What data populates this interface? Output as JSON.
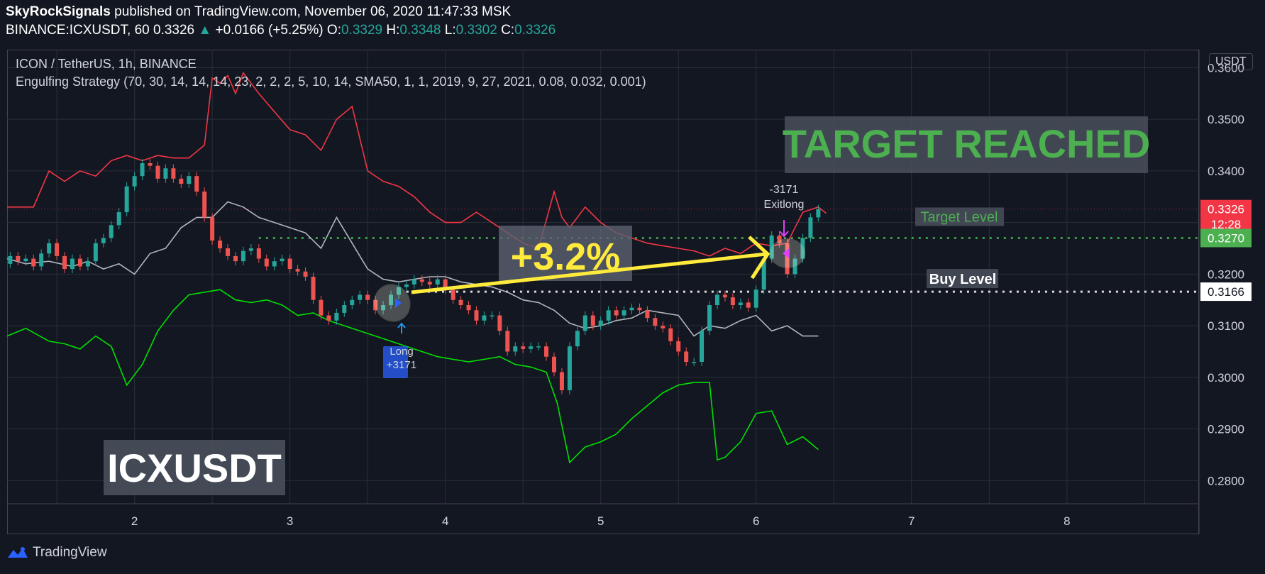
{
  "header": {
    "author": "SkyRockSignals",
    "published_text": "published on TradingView.com, November 06, 2020 11:47:33 MSK",
    "symbol": "BINANCE:ICXUSDT, 60",
    "last_price": "0.3326",
    "change": "+0.0166 (+5.25%)",
    "o_label": "O:",
    "o_value": "0.3329",
    "h_label": "H:",
    "h_value": "0.3348",
    "l_label": "L:",
    "l_value": "0.3302",
    "c_label": "C:",
    "c_value": "0.3326"
  },
  "legend": {
    "title": "ICON / TetherUS, 1h, BINANCE",
    "strategy": "Engulfing Strategy (70, 30, 14, 14, 14, 23, 2, 2, 2, 5, 10, 14, SMA50, 1, 1, 2019, 9, 27, 2021, 0.08, 0.032, 0.001)"
  },
  "currency_badge": "USDT",
  "brand": "TradingView",
  "chart_data": {
    "type": "line",
    "title": "",
    "x_ticks": [
      "2",
      "3",
      "4",
      "5",
      "6",
      "7",
      "8"
    ],
    "y_ticks": [
      "0.3600",
      "0.3500",
      "0.3400",
      "0.3300",
      "0.3200",
      "0.3100",
      "0.3000",
      "0.2900",
      "0.2800"
    ],
    "ylim": [
      0.2755,
      0.3635
    ],
    "xlim": [
      1.18,
      8.85
    ],
    "grid": true,
    "price_labels": [
      {
        "text": "0.3326",
        "value": 0.3326,
        "color": "#f23645"
      },
      {
        "text": "12:28",
        "value": 0.3297,
        "color": "#f23645"
      },
      {
        "text": "0.3270",
        "value": 0.327,
        "color": "#4caf50"
      },
      {
        "text": "0.3166",
        "value": 0.3166,
        "color": "#ffffff"
      }
    ],
    "levels": [
      {
        "name": "Target Level",
        "value": 0.327,
        "color": "#4caf50"
      },
      {
        "name": "Buy Level",
        "value": 0.3166,
        "color": "#ffffff"
      },
      {
        "name": "",
        "value": 0.3326,
        "color": "#f23645"
      }
    ],
    "annotations": {
      "target_reached": "TARGET REACHED",
      "gain": "+3.2%",
      "symbol_label": "ICXUSDT",
      "entry_label": "Long",
      "entry_qty": "+3171",
      "exit_qty": "-3171",
      "exit_label": "Exitlong",
      "target_level_label": "Target Level",
      "buy_level_label": "Buy Level"
    },
    "series": [
      {
        "color": "#f23645",
        "x": [
          1.18,
          1.25,
          1.35,
          1.45,
          1.55,
          1.65,
          1.75,
          1.85,
          1.95,
          2.05,
          2.15,
          2.25,
          2.35,
          2.45,
          2.5,
          2.55,
          2.6,
          2.65,
          2.7,
          2.8,
          2.9,
          3.0,
          3.1,
          3.2,
          3.3,
          3.4,
          3.5,
          3.6,
          3.7,
          3.8,
          3.9,
          4.0,
          4.1,
          4.2,
          4.3,
          4.4,
          4.5,
          4.6,
          4.7,
          4.75,
          4.8,
          4.9,
          5.0,
          5.1,
          5.2,
          5.3,
          5.4,
          5.5,
          5.6,
          5.7,
          5.8,
          5.9,
          6.0,
          6.1,
          6.2,
          6.3,
          6.4,
          6.45
        ],
        "y": [
          0.333,
          0.333,
          0.333,
          0.34,
          0.338,
          0.34,
          0.339,
          0.342,
          0.343,
          0.342,
          0.343,
          0.3425,
          0.3425,
          0.345,
          0.358,
          0.357,
          0.3585,
          0.355,
          0.359,
          0.355,
          0.3515,
          0.348,
          0.347,
          0.344,
          0.35,
          0.3525,
          0.34,
          0.338,
          0.337,
          0.335,
          0.332,
          0.33,
          0.33,
          0.332,
          0.33,
          0.328,
          0.326,
          0.325,
          0.336,
          0.331,
          0.329,
          0.333,
          0.33,
          0.328,
          0.327,
          0.326,
          0.3255,
          0.325,
          0.3245,
          0.3235,
          0.325,
          0.324,
          0.326,
          0.3255,
          0.326,
          0.332,
          0.333,
          0.3318
        ]
      },
      {
        "color": "#b2b5be",
        "x": [
          1.18,
          1.3,
          1.45,
          1.6,
          1.7,
          1.8,
          1.9,
          2.0,
          2.1,
          2.2,
          2.3,
          2.4,
          2.5,
          2.6,
          2.7,
          2.8,
          2.9,
          3.0,
          3.1,
          3.2,
          3.3,
          3.4,
          3.5,
          3.6,
          3.7,
          3.8,
          3.9,
          4.0,
          4.1,
          4.2,
          4.3,
          4.4,
          4.5,
          4.6,
          4.7,
          4.8,
          4.9,
          5.0,
          5.1,
          5.2,
          5.3,
          5.4,
          5.5,
          5.6,
          5.7,
          5.8,
          5.9,
          6.0,
          6.1,
          6.2,
          6.3,
          6.4
        ],
        "y": [
          0.323,
          0.322,
          0.3225,
          0.3215,
          0.3225,
          0.321,
          0.322,
          0.32,
          0.324,
          0.325,
          0.329,
          0.331,
          0.331,
          0.334,
          0.333,
          0.331,
          0.33,
          0.329,
          0.328,
          0.325,
          0.331,
          0.326,
          0.321,
          0.319,
          0.3185,
          0.319,
          0.3195,
          0.3195,
          0.3185,
          0.318,
          0.3175,
          0.3165,
          0.315,
          0.3145,
          0.313,
          0.3105,
          0.3095,
          0.31,
          0.311,
          0.3115,
          0.313,
          0.3125,
          0.312,
          0.308,
          0.31,
          0.3095,
          0.311,
          0.312,
          0.309,
          0.31,
          0.308,
          0.308
        ]
      },
      {
        "color": "#00e000",
        "x": [
          1.18,
          1.3,
          1.45,
          1.55,
          1.65,
          1.75,
          1.85,
          1.95,
          2.05,
          2.15,
          2.25,
          2.35,
          2.45,
          2.55,
          2.65,
          2.75,
          2.85,
          2.95,
          3.05,
          3.15,
          3.25,
          3.35,
          3.45,
          3.55,
          3.65,
          3.75,
          3.85,
          3.95,
          4.05,
          4.15,
          4.25,
          4.35,
          4.45,
          4.55,
          4.65,
          4.72,
          4.8,
          4.9,
          5.0,
          5.1,
          5.2,
          5.3,
          5.4,
          5.5,
          5.6,
          5.7,
          5.75,
          5.8,
          5.9,
          6.0,
          6.1,
          6.2,
          6.3,
          6.4
        ],
        "y": [
          0.308,
          0.3095,
          0.307,
          0.3065,
          0.3055,
          0.308,
          0.306,
          0.2985,
          0.3025,
          0.309,
          0.313,
          0.316,
          0.3165,
          0.317,
          0.315,
          0.3145,
          0.315,
          0.314,
          0.312,
          0.3125,
          0.311,
          0.31,
          0.309,
          0.308,
          0.307,
          0.306,
          0.305,
          0.304,
          0.3035,
          0.303,
          0.3035,
          0.304,
          0.3025,
          0.302,
          0.301,
          0.295,
          0.2835,
          0.2865,
          0.2875,
          0.289,
          0.292,
          0.2945,
          0.297,
          0.2985,
          0.299,
          0.299,
          0.284,
          0.2845,
          0.2875,
          0.293,
          0.2935,
          0.287,
          0.2885,
          0.286
        ]
      }
    ],
    "candles": {
      "x": [
        1.2,
        1.25,
        1.3,
        1.35,
        1.4,
        1.45,
        1.5,
        1.55,
        1.6,
        1.65,
        1.7,
        1.75,
        1.8,
        1.85,
        1.9,
        1.95,
        2.0,
        2.05,
        2.1,
        2.15,
        2.2,
        2.25,
        2.3,
        2.35,
        2.4,
        2.45,
        2.5,
        2.55,
        2.6,
        2.65,
        2.7,
        2.75,
        2.8,
        2.85,
        2.9,
        2.95,
        3.0,
        3.05,
        3.1,
        3.15,
        3.2,
        3.25,
        3.3,
        3.35,
        3.4,
        3.45,
        3.5,
        3.55,
        3.6,
        3.65,
        3.7,
        3.75,
        3.8,
        3.85,
        3.9,
        3.95,
        4.0,
        4.05,
        4.1,
        4.15,
        4.2,
        4.25,
        4.3,
        4.35,
        4.4,
        4.45,
        4.5,
        4.55,
        4.6,
        4.65,
        4.7,
        4.75,
        4.8,
        4.85,
        4.9,
        4.95,
        5.0,
        5.05,
        5.1,
        5.15,
        5.2,
        5.25,
        5.3,
        5.35,
        5.4,
        5.45,
        5.5,
        5.55,
        5.6,
        5.65,
        5.7,
        5.75,
        5.8,
        5.85,
        5.9,
        5.95,
        6.0,
        6.05,
        6.1,
        6.15,
        6.2,
        6.25,
        6.3,
        6.35,
        6.4
      ],
      "open": [
        0.322,
        0.3235,
        0.3225,
        0.323,
        0.3215,
        0.324,
        0.326,
        0.3235,
        0.321,
        0.323,
        0.3215,
        0.3225,
        0.326,
        0.327,
        0.3295,
        0.332,
        0.337,
        0.339,
        0.3415,
        0.341,
        0.3385,
        0.3405,
        0.3385,
        0.3375,
        0.339,
        0.336,
        0.331,
        0.3265,
        0.325,
        0.3235,
        0.3225,
        0.3245,
        0.325,
        0.323,
        0.3215,
        0.3225,
        0.323,
        0.321,
        0.3205,
        0.3195,
        0.315,
        0.312,
        0.311,
        0.3125,
        0.314,
        0.315,
        0.316,
        0.315,
        0.313,
        0.314,
        0.316,
        0.3175,
        0.318,
        0.319,
        0.3185,
        0.318,
        0.319,
        0.317,
        0.315,
        0.314,
        0.313,
        0.311,
        0.312,
        0.312,
        0.309,
        0.305,
        0.306,
        0.3055,
        0.306,
        0.306,
        0.304,
        0.301,
        0.2975,
        0.306,
        0.309,
        0.312,
        0.31,
        0.311,
        0.313,
        0.312,
        0.313,
        0.3135,
        0.313,
        0.3115,
        0.31,
        0.3095,
        0.307,
        0.305,
        0.303,
        0.303,
        0.309,
        0.314,
        0.316,
        0.3155,
        0.314,
        0.3145,
        0.3135,
        0.317,
        0.323,
        0.3275,
        0.326,
        0.32,
        0.323,
        0.327,
        0.331
      ],
      "close": [
        0.3235,
        0.3225,
        0.323,
        0.3215,
        0.324,
        0.326,
        0.3235,
        0.321,
        0.323,
        0.3215,
        0.3225,
        0.326,
        0.327,
        0.3295,
        0.332,
        0.337,
        0.339,
        0.3415,
        0.341,
        0.3385,
        0.3405,
        0.3385,
        0.3375,
        0.339,
        0.336,
        0.331,
        0.3265,
        0.325,
        0.3235,
        0.3225,
        0.3245,
        0.325,
        0.323,
        0.3215,
        0.3225,
        0.323,
        0.321,
        0.3205,
        0.3195,
        0.315,
        0.312,
        0.311,
        0.3125,
        0.314,
        0.315,
        0.316,
        0.315,
        0.313,
        0.314,
        0.316,
        0.3175,
        0.318,
        0.319,
        0.3185,
        0.318,
        0.319,
        0.317,
        0.315,
        0.314,
        0.313,
        0.311,
        0.312,
        0.312,
        0.309,
        0.305,
        0.306,
        0.3055,
        0.306,
        0.306,
        0.304,
        0.301,
        0.2975,
        0.306,
        0.309,
        0.312,
        0.31,
        0.311,
        0.313,
        0.312,
        0.313,
        0.3135,
        0.313,
        0.3115,
        0.31,
        0.3095,
        0.307,
        0.305,
        0.303,
        0.303,
        0.309,
        0.314,
        0.316,
        0.3155,
        0.314,
        0.3145,
        0.3135,
        0.317,
        0.323,
        0.3275,
        0.326,
        0.32,
        0.323,
        0.327,
        0.331,
        0.3326
      ]
    }
  }
}
